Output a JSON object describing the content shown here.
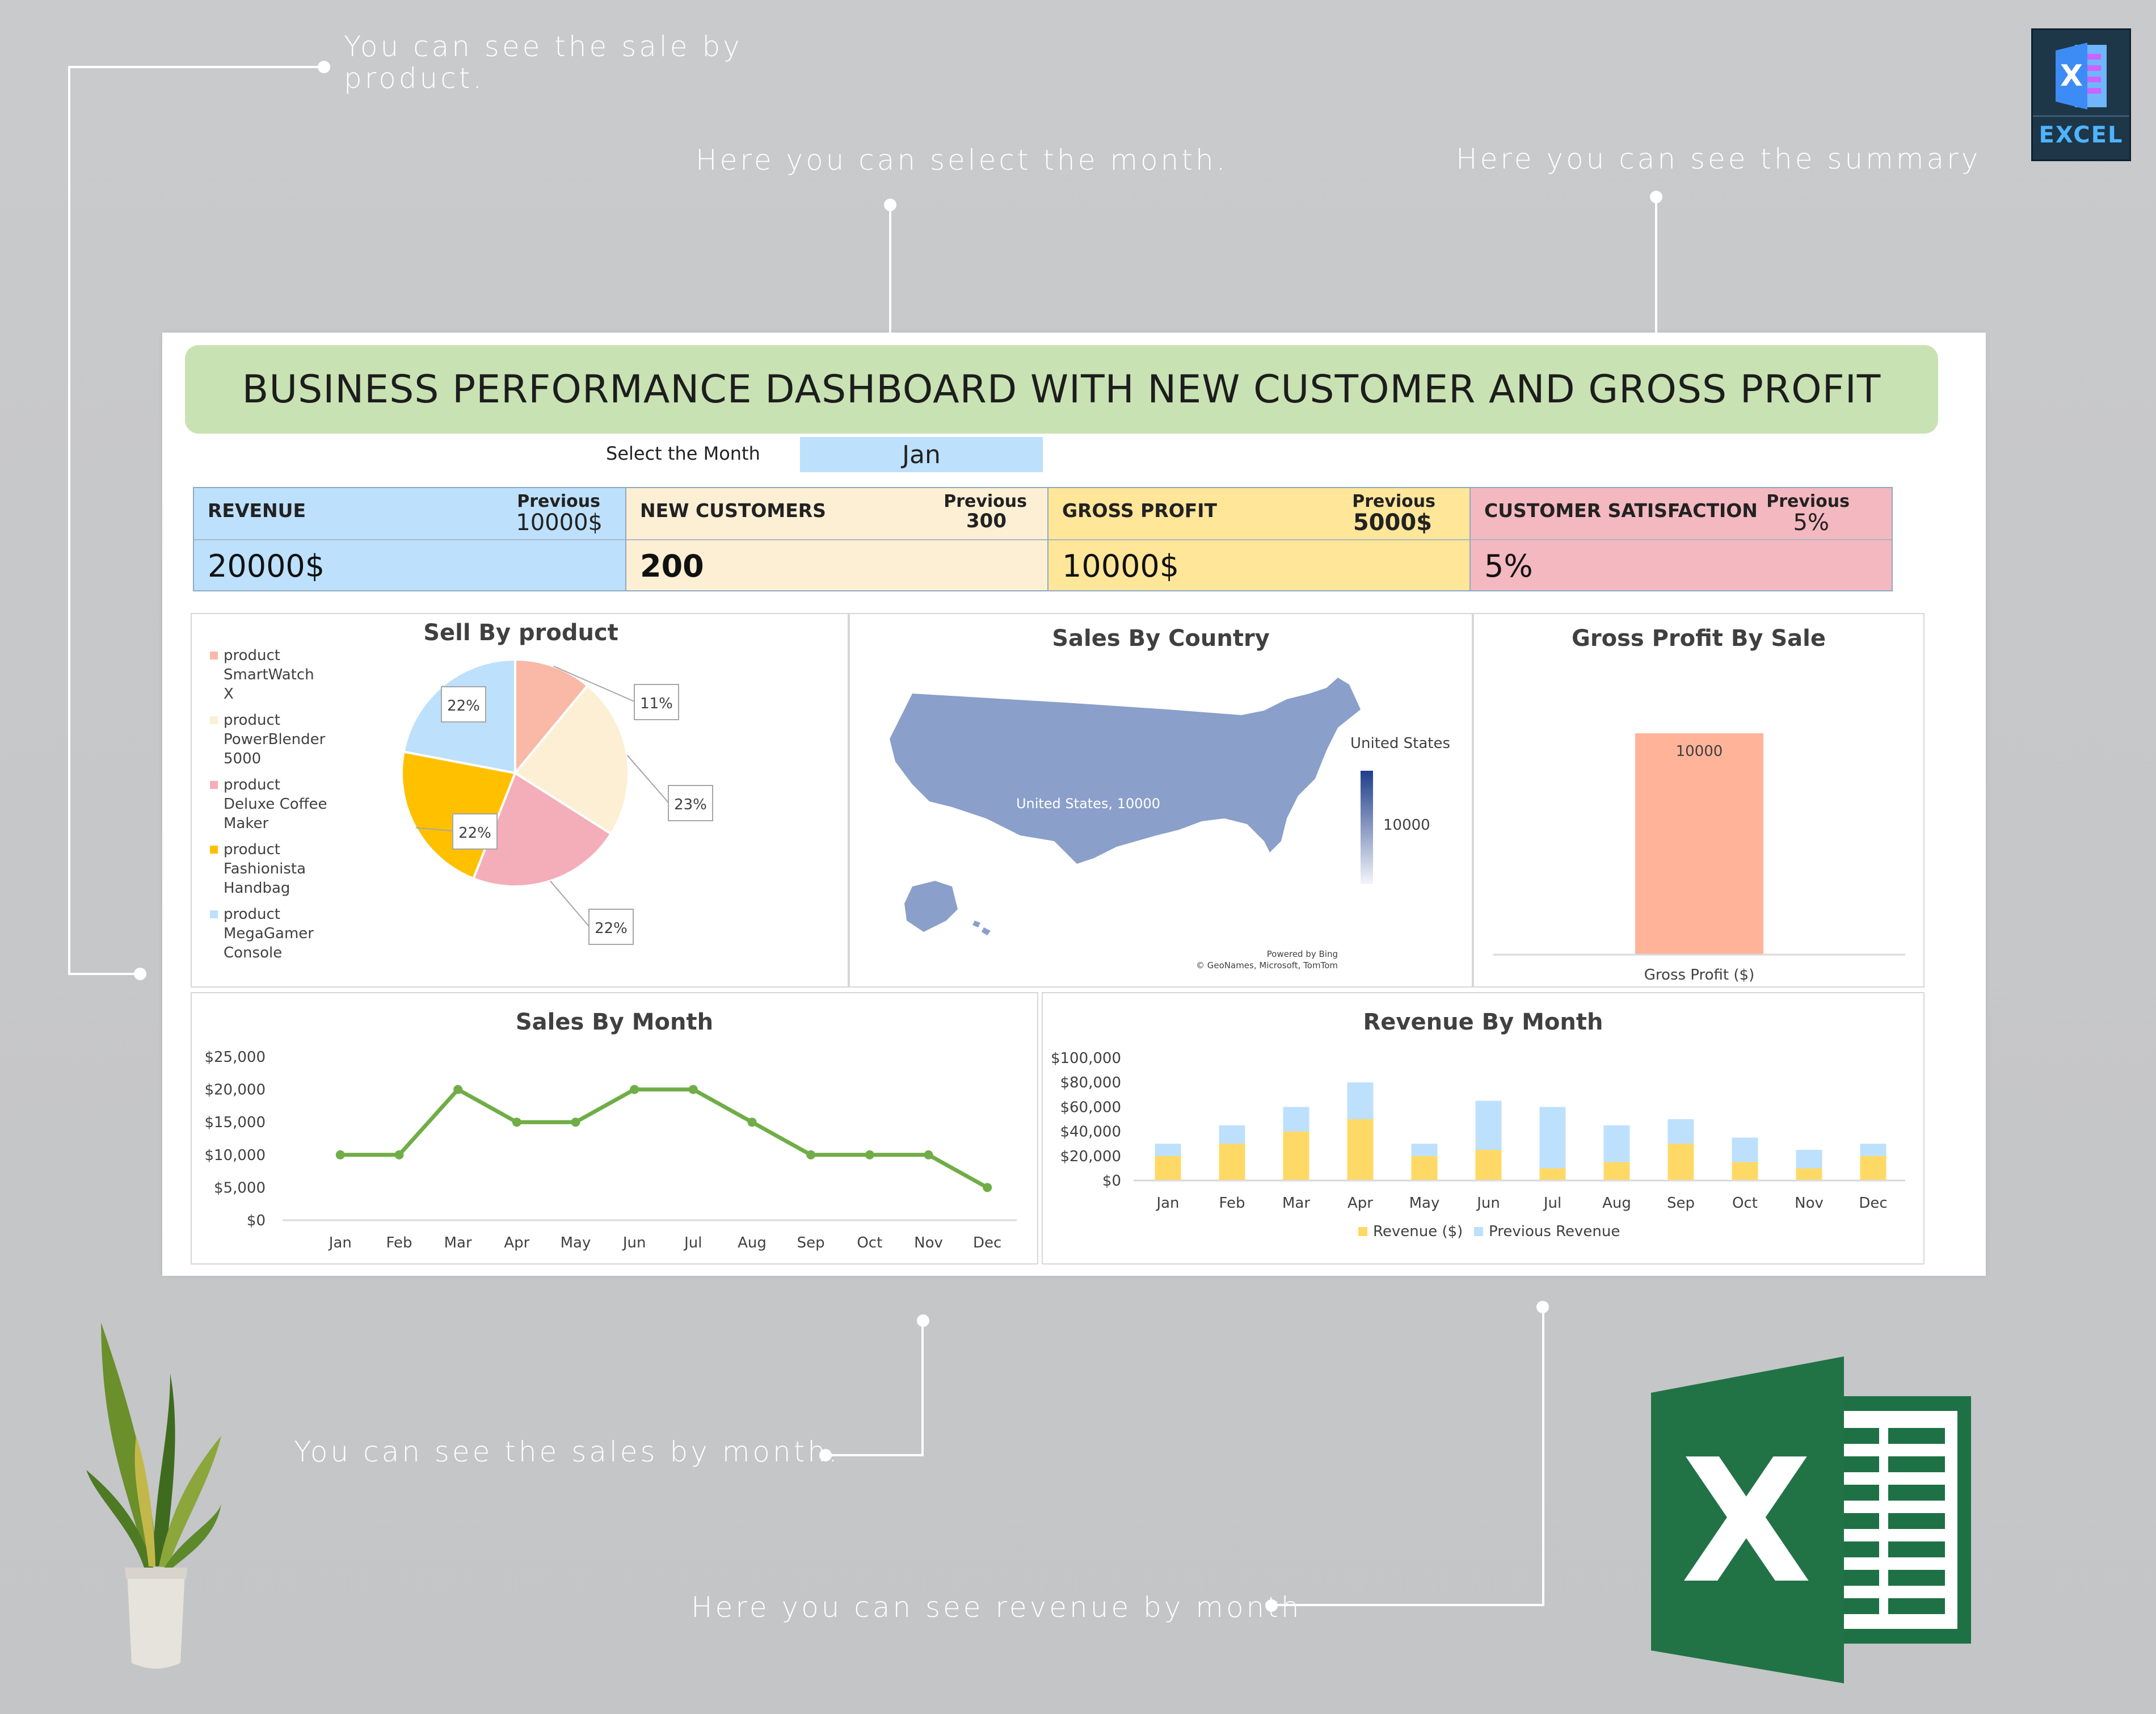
{
  "callouts": {
    "sale_by_product": "You can see the sale by\nproduct.",
    "select_month": "Here you can select the month.",
    "summary": "Here you can see the summary",
    "sales_by_month": "You can see the sales by month.",
    "revenue_by_month": "Here you can see revenue by month"
  },
  "badge": {
    "label": "EXCEL",
    "letter": "X"
  },
  "dashboard": {
    "title": "BUSINESS PERFORMANCE DASHBOARD WITH NEW CUSTOMER AND GROSS PROFIT",
    "month_label": "Select the Month",
    "month_value": "Jan",
    "kpis": [
      {
        "name": "REVENUE",
        "prev_label": "Previous",
        "prev_value": "10000$",
        "value": "20000$",
        "color": "#bde0fc"
      },
      {
        "name": "NEW CUSTOMERS",
        "prev_label": "Previous",
        "prev_value": "300",
        "value": "200",
        "color": "#fcefd4"
      },
      {
        "name": "GROSS PROFIT",
        "prev_label": "Previous",
        "prev_value": "5000$",
        "value": "10000$",
        "color": "#ffe699"
      },
      {
        "name": "CUSTOMER SATISFACTION",
        "prev_label": "Previous",
        "prev_value": "5%",
        "value": "5%",
        "color": "#f4b8c0"
      }
    ]
  },
  "panels": {
    "sell_by_product": "Sell By product",
    "sales_by_country": "Sales By Country",
    "gross_profit_by_sale": "Gross Profit By Sale",
    "sales_by_month": "Sales By Month",
    "revenue_by_month": "Revenue By Month"
  },
  "map": {
    "region_label": "United States, 10000",
    "legend_title": "United States",
    "legend_value": "10000",
    "credit1": "Powered by Bing",
    "credit2": "© GeoNames, Microsoft, TomTom",
    "color": "#8a9fc9"
  },
  "chart_data": [
    {
      "type": "pie",
      "title": "Sell By product",
      "categories": [
        "product SmartWatch X",
        "product PowerBlender 5000",
        "product Deluxe Coffee Maker",
        "product Fashionista Handbag",
        "product MegaGamer Console"
      ],
      "legend_lines": [
        [
          "product",
          "SmartWatch",
          "X"
        ],
        [
          "product",
          "PowerBlender",
          "5000"
        ],
        [
          "product",
          "Deluxe Coffee",
          "Maker"
        ],
        [
          "product",
          "Fashionista",
          "Handbag"
        ],
        [
          "product",
          "MegaGamer",
          "Console"
        ]
      ],
      "values": [
        11,
        23,
        22,
        22,
        22
      ],
      "labels": [
        "11%",
        "23%",
        "22%",
        "22%",
        "22%"
      ],
      "colors": [
        "#f9b9a6",
        "#fcefd4",
        "#f4aeb9",
        "#ffc000",
        "#bde0fc"
      ]
    },
    {
      "type": "bar",
      "title": "Gross Profit By Sale",
      "categories": [
        "Gross Profit ($)"
      ],
      "values": [
        10000
      ],
      "data_labels": [
        "10000"
      ],
      "color": "#ffb49a"
    },
    {
      "type": "line",
      "title": "Sales By Month",
      "categories": [
        "Jan",
        "Feb",
        "Mar",
        "Apr",
        "May",
        "Jun",
        "Jul",
        "Aug",
        "Sep",
        "Oct",
        "Nov",
        "Dec"
      ],
      "values": [
        10000,
        10000,
        20000,
        15000,
        15000,
        20000,
        20000,
        15000,
        10000,
        10000,
        10000,
        5000
      ],
      "ylim": [
        0,
        25000
      ],
      "yticks": [
        "$0",
        "$5,000",
        "$10,000",
        "$15,000",
        "$20,000",
        "$25,000"
      ],
      "color": "#70ad47"
    },
    {
      "type": "bar",
      "title": "Revenue By Month",
      "stacked": true,
      "categories": [
        "Jan",
        "Feb",
        "Mar",
        "Apr",
        "May",
        "Jun",
        "Jul",
        "Aug",
        "Sep",
        "Oct",
        "Nov",
        "Dec"
      ],
      "series": [
        {
          "name": "Revenue ($)",
          "values": [
            20000,
            30000,
            40000,
            50000,
            20000,
            25000,
            10000,
            15000,
            30000,
            15000,
            10000,
            20000
          ],
          "color": "#ffd966"
        },
        {
          "name": "Previous Revenue",
          "values": [
            10000,
            15000,
            20000,
            30000,
            10000,
            40000,
            50000,
            30000,
            20000,
            20000,
            15000,
            10000
          ],
          "color": "#bde0fc"
        }
      ],
      "ylim": [
        0,
        100000
      ],
      "yticks": [
        "$0",
        "$20,000",
        "$40,000",
        "$60,000",
        "$80,000",
        "$100,000"
      ]
    }
  ]
}
